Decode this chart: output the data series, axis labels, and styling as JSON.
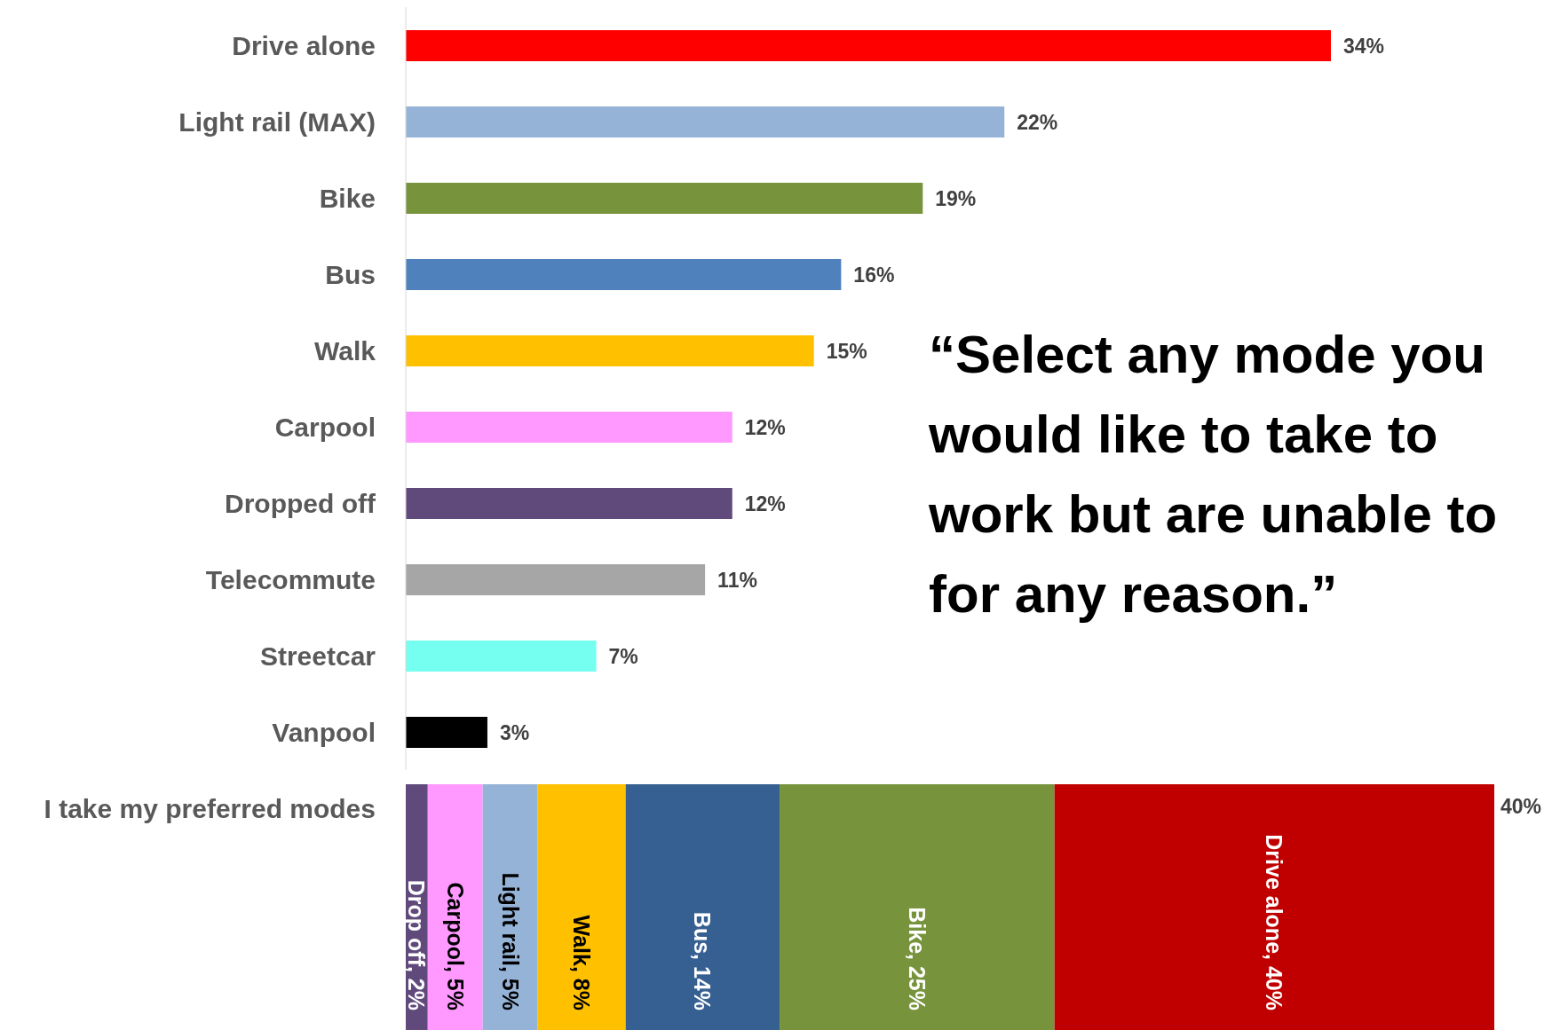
{
  "chart_data": [
    {
      "type": "bar",
      "orientation": "horizontal",
      "title": "“Select any mode you would like to take to work but are unable to for any reason.”",
      "categories": [
        "Drive alone",
        "Light rail (MAX)",
        "Bike",
        "Bus",
        "Walk",
        "Carpool",
        "Dropped off",
        "Telecommute",
        "Streetcar",
        "Vanpool"
      ],
      "values": [
        34,
        22,
        19,
        16,
        15,
        12,
        12,
        11,
        7,
        3
      ],
      "value_labels": [
        "34%",
        "22%",
        "19%",
        "16%",
        "15%",
        "12%",
        "12%",
        "11%",
        "7%",
        "3%"
      ],
      "colors": [
        "#ff0000",
        "#95b3d7",
        "#77933c",
        "#4f81bd",
        "#ffc000",
        "#ff99ff",
        "#604a7b",
        "#a6a6a6",
        "#75fff0",
        "#000000"
      ]
    },
    {
      "type": "bar",
      "orientation": "horizontal",
      "stacked": true,
      "categories": [
        null
      ],
      "ylabel": "I take my preferred modes",
      "annotations": [
        "40%"
      ],
      "series": [
        {
          "color": "#604a7b",
          "values": [
            2
          ],
          "value_labels": [
            "Drop off, 2%"
          ]
        },
        {
          "color": "#ff99ff",
          "values": [
            5
          ],
          "value_labels": [
            "Carpool, 5%"
          ]
        },
        {
          "color": "#95b3d7",
          "values": [
            5
          ],
          "value_labels": [
            "Light rail, 5%"
          ]
        },
        {
          "color": "#ffc000",
          "values": [
            8
          ],
          "value_labels": [
            "Walk, 8%"
          ]
        },
        {
          "color": "#376092",
          "values": [
            14
          ],
          "value_labels": [
            "Bus, 14%"
          ]
        },
        {
          "color": "#77933c",
          "values": [
            25
          ],
          "value_labels": [
            "Bike, 25%"
          ]
        },
        {
          "color": "#c00000",
          "values": [
            40
          ],
          "value_labels": [
            "Drive alone, 40%"
          ]
        }
      ]
    }
  ]
}
